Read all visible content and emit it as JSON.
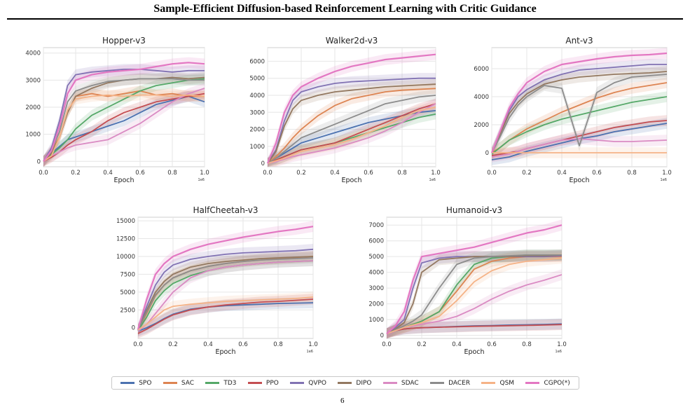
{
  "page_title": "Sample-Efficient Diffusion-based Reinforcement Learning with Critic Guidance",
  "page_number": "6",
  "legend": [
    {
      "name": "SPO",
      "color": "#4c72b0"
    },
    {
      "name": "SAC",
      "color": "#dd8452"
    },
    {
      "name": "TD3",
      "color": "#55a868"
    },
    {
      "name": "PPO",
      "color": "#c44e52"
    },
    {
      "name": "QVPO",
      "color": "#8172b3"
    },
    {
      "name": "DIPO",
      "color": "#937860"
    },
    {
      "name": "SDAC",
      "color": "#da8bc3"
    },
    {
      "name": "DACER",
      "color": "#8c8c8c"
    },
    {
      "name": "QSM",
      "color": "#f5b387"
    },
    {
      "name": "CGPO(*)",
      "color": "#e377c2"
    }
  ],
  "chart_data": [
    {
      "type": "line",
      "title": "Hopper-v3",
      "xlabel": "Epoch",
      "ylabel": "",
      "x_scale_note": "1e6",
      "xlim": [
        0,
        1.0
      ],
      "ylim": [
        -200,
        4200
      ],
      "xticks": [
        "0.0",
        "0.2",
        "0.4",
        "0.6",
        "0.8",
        "1.0"
      ],
      "yticks": [
        "0",
        "1000",
        "2000",
        "3000",
        "4000"
      ],
      "x": [
        0,
        0.05,
        0.1,
        0.15,
        0.2,
        0.3,
        0.4,
        0.5,
        0.6,
        0.7,
        0.8,
        0.9,
        1.0
      ],
      "series": [
        {
          "name": "SPO",
          "values": [
            0,
            300,
            550,
            800,
            900,
            1100,
            1300,
            1500,
            1800,
            2100,
            2250,
            2400,
            2200
          ]
        },
        {
          "name": "SAC",
          "values": [
            0,
            400,
            900,
            1800,
            2400,
            2500,
            2400,
            2500,
            2600,
            2450,
            2500,
            2400,
            2400
          ]
        },
        {
          "name": "TD3",
          "values": [
            0,
            250,
            500,
            800,
            1200,
            1700,
            2000,
            2300,
            2600,
            2800,
            2900,
            3000,
            3050
          ]
        },
        {
          "name": "PPO",
          "values": [
            0,
            150,
            350,
            600,
            800,
            1100,
            1500,
            1800,
            2000,
            2200,
            2300,
            2400,
            2500
          ]
        },
        {
          "name": "QVPO",
          "values": [
            0,
            500,
            1500,
            2800,
            3200,
            3300,
            3350,
            3400,
            3400,
            3350,
            3300,
            3350,
            3350
          ]
        },
        {
          "name": "DIPO",
          "values": [
            0,
            300,
            900,
            1800,
            2400,
            2700,
            2900,
            3000,
            3050,
            3050,
            3100,
            3050,
            3100
          ]
        },
        {
          "name": "SDAC",
          "values": [
            0,
            200,
            350,
            500,
            600,
            700,
            800,
            1100,
            1400,
            1800,
            2200,
            2500,
            2700
          ]
        },
        {
          "name": "DACER",
          "values": [
            0,
            400,
            1100,
            2200,
            2600,
            2800,
            2950,
            3000,
            3050,
            3050,
            3050,
            3000,
            3000
          ]
        },
        {
          "name": "QSM",
          "values": [
            0,
            200,
            900,
            1900,
            2300,
            2400,
            2450,
            2400,
            2450,
            2450,
            2400,
            2450,
            2400
          ]
        },
        {
          "name": "CGPO(*)",
          "values": [
            0,
            400,
            1300,
            2500,
            3000,
            3200,
            3300,
            3350,
            3400,
            3500,
            3600,
            3650,
            3600
          ]
        }
      ]
    },
    {
      "type": "line",
      "title": "Walker2d-v3",
      "xlabel": "Epoch",
      "ylabel": "",
      "x_scale_note": "1e6",
      "xlim": [
        0,
        1.0
      ],
      "ylim": [
        -200,
        6800
      ],
      "xticks": [
        "0.0",
        "0.2",
        "0.4",
        "0.6",
        "0.8",
        "1.0"
      ],
      "yticks": [
        "0",
        "1000",
        "2000",
        "3000",
        "4000",
        "5000",
        "6000"
      ],
      "x": [
        0,
        0.05,
        0.1,
        0.15,
        0.2,
        0.3,
        0.4,
        0.5,
        0.6,
        0.7,
        0.8,
        0.9,
        1.0
      ],
      "series": [
        {
          "name": "SPO",
          "values": [
            0,
            300,
            600,
            900,
            1200,
            1500,
            1800,
            2100,
            2400,
            2600,
            2800,
            3000,
            3100
          ]
        },
        {
          "name": "SAC",
          "values": [
            0,
            400,
            900,
            1500,
            2000,
            2800,
            3400,
            3800,
            4000,
            4200,
            4300,
            4350,
            4400
          ]
        },
        {
          "name": "TD3",
          "values": [
            0,
            200,
            400,
            600,
            800,
            1000,
            1200,
            1500,
            1800,
            2100,
            2400,
            2700,
            2900
          ]
        },
        {
          "name": "PPO",
          "values": [
            0,
            200,
            400,
            600,
            800,
            1000,
            1200,
            1600,
            2000,
            2400,
            2800,
            3200,
            3500
          ]
        },
        {
          "name": "QVPO",
          "values": [
            0,
            800,
            2500,
            3700,
            4200,
            4500,
            4700,
            4800,
            4850,
            4900,
            4950,
            5000,
            5000
          ]
        },
        {
          "name": "DIPO",
          "values": [
            0,
            700,
            2200,
            3200,
            3700,
            4000,
            4200,
            4300,
            4400,
            4500,
            4550,
            4600,
            4650
          ]
        },
        {
          "name": "SDAC",
          "values": [
            0,
            100,
            250,
            400,
            500,
            700,
            900,
            1200,
            1500,
            1900,
            2400,
            3000,
            3500
          ]
        },
        {
          "name": "DACER",
          "values": [
            0,
            300,
            700,
            1100,
            1500,
            1900,
            2300,
            2700,
            3100,
            3500,
            3700,
            3900,
            4000
          ]
        },
        {
          "name": "QSM",
          "values": [
            0,
            150,
            300,
            500,
            700,
            900,
            1100,
            1400,
            1800,
            2200,
            2700,
            3100,
            3300
          ]
        },
        {
          "name": "CGPO(*)",
          "values": [
            0,
            1200,
            3000,
            4000,
            4500,
            5000,
            5400,
            5700,
            5900,
            6100,
            6200,
            6300,
            6400
          ]
        }
      ]
    },
    {
      "type": "line",
      "title": "Ant-v3",
      "xlabel": "Epoch",
      "ylabel": "",
      "x_scale_note": "1e6",
      "xlim": [
        0,
        1.0
      ],
      "ylim": [
        -1000,
        7500
      ],
      "xticks": [
        "0.0",
        "0.2",
        "0.4",
        "0.6",
        "0.8",
        "1.0"
      ],
      "yticks": [
        "0",
        "2000",
        "4000",
        "6000"
      ],
      "x": [
        0,
        0.05,
        0.1,
        0.15,
        0.2,
        0.3,
        0.4,
        0.5,
        0.6,
        0.7,
        0.8,
        0.9,
        1.0
      ],
      "series": [
        {
          "name": "SPO",
          "values": [
            -500,
            -400,
            -300,
            -100,
            100,
            400,
            700,
            1000,
            1200,
            1500,
            1700,
            1900,
            2100
          ]
        },
        {
          "name": "SAC",
          "values": [
            0,
            400,
            900,
            1300,
            1700,
            2300,
            2900,
            3400,
            3900,
            4300,
            4600,
            4800,
            5000
          ]
        },
        {
          "name": "TD3",
          "values": [
            -100,
            400,
            900,
            1200,
            1500,
            2000,
            2400,
            2700,
            3000,
            3300,
            3600,
            3800,
            4000
          ]
        },
        {
          "name": "PPO",
          "values": [
            -200,
            -100,
            0,
            100,
            300,
            600,
            900,
            1200,
            1500,
            1800,
            2000,
            2200,
            2300
          ]
        },
        {
          "name": "QVPO",
          "values": [
            0,
            1500,
            3000,
            4000,
            4500,
            5200,
            5600,
            5900,
            6000,
            6100,
            6200,
            6300,
            6300
          ]
        },
        {
          "name": "DIPO",
          "values": [
            0,
            1400,
            2800,
            3600,
            4200,
            4900,
            5200,
            5400,
            5500,
            5600,
            5650,
            5700,
            5800
          ]
        },
        {
          "name": "SDAC",
          "values": [
            -300,
            -200,
            -100,
            100,
            300,
            600,
            900,
            1000,
            900,
            800,
            800,
            850,
            900
          ]
        },
        {
          "name": "DACER",
          "values": [
            0,
            1200,
            2500,
            3400,
            4000,
            4800,
            4600,
            500,
            4300,
            5000,
            5400,
            5500,
            5600
          ]
        },
        {
          "name": "QSM",
          "values": [
            0,
            0,
            0,
            0,
            0,
            0,
            0,
            0,
            0,
            0,
            0,
            0,
            0
          ]
        },
        {
          "name": "CGPO(*)",
          "values": [
            0,
            1600,
            3200,
            4200,
            5000,
            5800,
            6300,
            6500,
            6700,
            6850,
            6950,
            7000,
            7100
          ]
        }
      ]
    },
    {
      "type": "line",
      "title": "HalfCheetah-v3",
      "xlabel": "Epoch",
      "ylabel": "",
      "x_scale_note": "1e6",
      "xlim": [
        0,
        1.0
      ],
      "ylim": [
        -1500,
        15500
      ],
      "xticks": [
        "0.0",
        "0.2",
        "0.4",
        "0.6",
        "0.8",
        "1.0"
      ],
      "yticks": [
        "0",
        "2500",
        "5000",
        "7500",
        "10000",
        "12500",
        "15000"
      ],
      "x": [
        0,
        0.05,
        0.1,
        0.15,
        0.2,
        0.3,
        0.4,
        0.5,
        0.6,
        0.7,
        0.8,
        0.9,
        1.0
      ],
      "series": [
        {
          "name": "SPO",
          "values": [
            -500,
            0,
            600,
            1300,
            1900,
            2600,
            2900,
            3100,
            3200,
            3300,
            3400,
            3450,
            3500
          ]
        },
        {
          "name": "SAC",
          "values": [
            -300,
            2000,
            4500,
            6000,
            7000,
            8000,
            8600,
            9000,
            9300,
            9500,
            9700,
            9850,
            10000
          ]
        },
        {
          "name": "TD3",
          "values": [
            -400,
            1500,
            3800,
            5200,
            6200,
            7300,
            8000,
            8500,
            8800,
            9000,
            9200,
            9300,
            9400
          ]
        },
        {
          "name": "PPO",
          "values": [
            -800,
            -200,
            500,
            1200,
            1800,
            2500,
            2900,
            3200,
            3400,
            3600,
            3700,
            3850,
            4000
          ]
        },
        {
          "name": "QVPO",
          "values": [
            -200,
            3000,
            6000,
            7800,
            8800,
            9600,
            10000,
            10300,
            10500,
            10600,
            10700,
            10800,
            11000
          ]
        },
        {
          "name": "DIPO",
          "values": [
            -300,
            2500,
            5000,
            6500,
            7500,
            8500,
            9000,
            9300,
            9500,
            9700,
            9800,
            9900,
            10000
          ]
        },
        {
          "name": "SDAC",
          "values": [
            -500,
            500,
            2000,
            3500,
            5000,
            7000,
            8000,
            8500,
            8800,
            9000,
            9200,
            9300,
            9400
          ]
        },
        {
          "name": "DACER",
          "values": [
            -300,
            2200,
            4600,
            6000,
            7000,
            8000,
            8600,
            9000,
            9300,
            9500,
            9600,
            9700,
            9800
          ]
        },
        {
          "name": "QSM",
          "values": [
            -300,
            500,
            1500,
            2500,
            3000,
            3300,
            3500,
            3700,
            3800,
            3900,
            4000,
            4100,
            4300
          ]
        },
        {
          "name": "CGPO(*)",
          "values": [
            -200,
            4000,
            7500,
            9000,
            10000,
            11000,
            11700,
            12200,
            12700,
            13100,
            13500,
            13800,
            14200
          ]
        }
      ]
    },
    {
      "type": "line",
      "title": "Humanoid-v3",
      "xlabel": "Epoch",
      "ylabel": "",
      "x_scale_note": "1e6",
      "xlim": [
        0,
        1.0
      ],
      "ylim": [
        -200,
        7500
      ],
      "xticks": [
        "0.0",
        "0.2",
        "0.4",
        "0.6",
        "0.8",
        "1.0"
      ],
      "yticks": [
        "0",
        "1000",
        "2000",
        "3000",
        "4000",
        "5000",
        "6000",
        "7000"
      ],
      "x": [
        0,
        0.05,
        0.1,
        0.15,
        0.2,
        0.3,
        0.4,
        0.5,
        0.6,
        0.7,
        0.8,
        0.9,
        1.0
      ],
      "series": [
        {
          "name": "SPO",
          "values": [
            100,
            300,
            400,
            450,
            480,
            520,
            560,
            600,
            620,
            650,
            670,
            690,
            720
          ]
        },
        {
          "name": "SAC",
          "values": [
            100,
            350,
            500,
            700,
            900,
            1500,
            2800,
            4200,
            4700,
            4900,
            5000,
            5000,
            5000
          ]
        },
        {
          "name": "TD3",
          "values": [
            100,
            350,
            500,
            700,
            900,
            1500,
            3200,
            4500,
            4900,
            5000,
            5100,
            5100,
            5100
          ]
        },
        {
          "name": "PPO",
          "values": [
            100,
            300,
            400,
            450,
            480,
            510,
            540,
            570,
            590,
            610,
            630,
            650,
            680
          ]
        },
        {
          "name": "QVPO",
          "values": [
            100,
            500,
            1000,
            3000,
            4600,
            4900,
            5000,
            5000,
            5000,
            5000,
            5000,
            5000,
            5050
          ]
        },
        {
          "name": "DIPO",
          "values": [
            100,
            400,
            800,
            2000,
            4000,
            4800,
            4900,
            5000,
            5000,
            5000,
            5050,
            5050,
            5100
          ]
        },
        {
          "name": "SDAC",
          "values": [
            100,
            300,
            500,
            600,
            700,
            900,
            1200,
            1700,
            2300,
            2800,
            3200,
            3500,
            3850
          ]
        },
        {
          "name": "DACER",
          "values": [
            100,
            350,
            600,
            900,
            1300,
            3000,
            4500,
            4900,
            5000,
            5050,
            5100,
            5100,
            5100
          ]
        },
        {
          "name": "QSM",
          "values": [
            100,
            300,
            500,
            650,
            800,
            1200,
            2200,
            3400,
            4100,
            4500,
            4700,
            4800,
            4900
          ]
        },
        {
          "name": "CGPO(*)",
          "values": [
            100,
            600,
            1500,
            3500,
            5000,
            5200,
            5400,
            5600,
            5900,
            6200,
            6500,
            6700,
            7000
          ]
        }
      ]
    }
  ]
}
